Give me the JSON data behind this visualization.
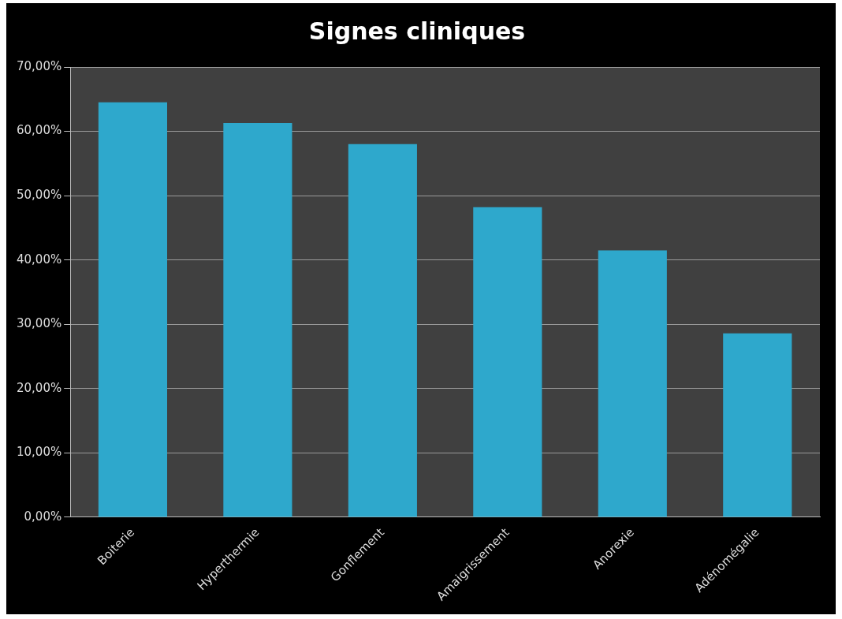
{
  "chart_data": {
    "type": "bar",
    "title": "Signes cliniques",
    "categories": [
      "Boiterie",
      "Hyperthermie",
      "Gonflement",
      "Amaigrissement",
      "Anorexie",
      "Adénomégalie"
    ],
    "values": [
      64.5,
      61.3,
      58.0,
      48.2,
      41.5,
      28.6
    ],
    "color": "#2ea8cc",
    "ylim": [
      0,
      70
    ],
    "yticks": [
      {
        "value": 0,
        "label": "0,00%"
      },
      {
        "value": 10,
        "label": "10,00%"
      },
      {
        "value": 20,
        "label": "20,00%"
      },
      {
        "value": 30,
        "label": "30,00%"
      },
      {
        "value": 40,
        "label": "40,00%"
      },
      {
        "value": 50,
        "label": "50,00%"
      },
      {
        "value": 60,
        "label": "60,00%"
      },
      {
        "value": 70,
        "label": "70,00%"
      }
    ],
    "grid": "y"
  }
}
